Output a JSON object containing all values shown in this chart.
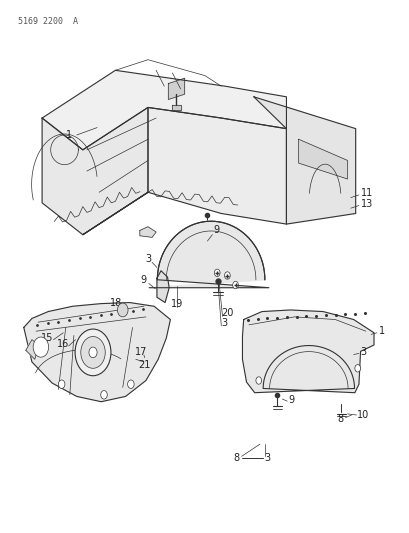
{
  "doc_number": "5169 2200  A",
  "background_color": "#ffffff",
  "line_color": "#333333",
  "label_color": "#222222",
  "figsize": [
    4.1,
    5.33
  ],
  "dpi": 100
}
